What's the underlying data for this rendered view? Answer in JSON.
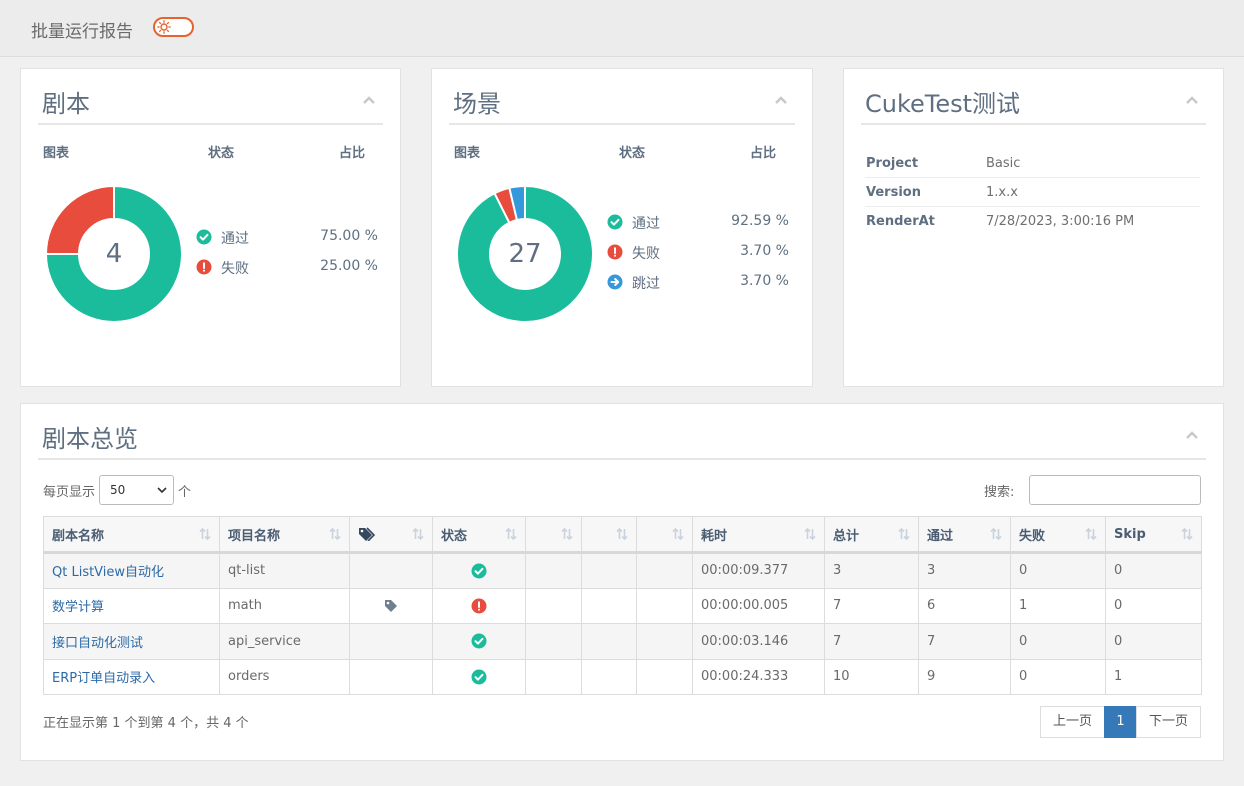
{
  "app": {
    "title": "批量运行报告"
  },
  "columns": {
    "chart": "图表",
    "status": "状态",
    "ratio": "占比"
  },
  "features_panel": {
    "title": "剧本",
    "total": "4",
    "legend": [
      {
        "label": "通过",
        "percent": "75.00 %",
        "status": "passed",
        "color": "#1abc9c",
        "value": 75.0
      },
      {
        "label": "失败",
        "percent": "25.00 %",
        "status": "failed",
        "color": "#e74c3c",
        "value": 25.0
      }
    ]
  },
  "scenarios_panel": {
    "title": "场景",
    "total": "27",
    "legend": [
      {
        "label": "通过",
        "percent": "92.59 %",
        "status": "passed",
        "color": "#1abc9c",
        "value": 92.59
      },
      {
        "label": "失败",
        "percent": "3.70 %",
        "status": "failed",
        "color": "#e74c3c",
        "value": 3.7
      },
      {
        "label": "跳过",
        "percent": "3.70 %",
        "status": "skipped",
        "color": "#3498db",
        "value": 3.7
      }
    ]
  },
  "meta_panel": {
    "title": "CukeTest测试",
    "rows": [
      {
        "key": "Project",
        "value": "Basic"
      },
      {
        "key": "Version",
        "value": "1.x.x"
      },
      {
        "key": "RenderAt",
        "value": "7/28/2023, 3:00:16 PM"
      }
    ]
  },
  "overview_panel": {
    "title": "剧本总览",
    "page_size_prefix": "每页显示",
    "page_size_value": "50",
    "page_size_suffix": "个",
    "search_label": "搜索:",
    "search_value": "",
    "headers": [
      "剧本名称",
      "项目名称",
      "",
      "状态",
      "",
      "",
      "",
      "耗时",
      "总计",
      "通过",
      "失败",
      "Skip"
    ],
    "rows": [
      {
        "name": "Qt ListView自动化",
        "project": "qt-list",
        "tag": false,
        "status": "passed",
        "duration": "00:00:09.377",
        "total": "3",
        "passed": "3",
        "failed": "0",
        "skip": "0"
      },
      {
        "name": "数学计算",
        "project": "math",
        "tag": true,
        "status": "failed",
        "duration": "00:00:00.005",
        "total": "7",
        "passed": "6",
        "failed": "1",
        "skip": "0"
      },
      {
        "name": "接口自动化测试",
        "project": "api_service",
        "tag": false,
        "status": "passed",
        "duration": "00:00:03.146",
        "total": "7",
        "passed": "7",
        "failed": "0",
        "skip": "0"
      },
      {
        "name": "ERP订单自动录入",
        "project": "orders",
        "tag": false,
        "status": "passed",
        "duration": "00:00:24.333",
        "total": "10",
        "passed": "9",
        "failed": "0",
        "skip": "1"
      }
    ],
    "info": "正在显示第 1 个到第 4 个，共 4 个",
    "pager": {
      "prev": "上一页",
      "current": "1",
      "next": "下一页"
    }
  }
}
